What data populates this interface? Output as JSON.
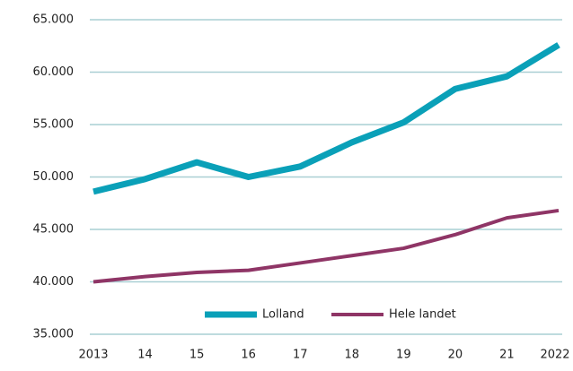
{
  "chart_data": {
    "type": "line",
    "categories": [
      "2013",
      "14",
      "15",
      "16",
      "17",
      "18",
      "19",
      "20",
      "21",
      "2022"
    ],
    "series": [
      {
        "name": "Lolland",
        "color": "#0aa0b8",
        "values": [
          48600,
          49800,
          51400,
          50000,
          51000,
          53300,
          55200,
          58400,
          59600,
          62600
        ]
      },
      {
        "name": "Hele landet",
        "color": "#8f3566",
        "values": [
          40000,
          40500,
          40900,
          41100,
          41800,
          42500,
          43200,
          44500,
          46100,
          46800
        ]
      }
    ],
    "ylim": [
      35000,
      65000
    ],
    "yticks": [
      {
        "value": 35000,
        "label": "35.000"
      },
      {
        "value": 40000,
        "label": "40.000"
      },
      {
        "value": 45000,
        "label": "45.000"
      },
      {
        "value": 50000,
        "label": "50.000"
      },
      {
        "value": 55000,
        "label": "55.000"
      },
      {
        "value": 60000,
        "label": "60.000"
      },
      {
        "value": 65000,
        "label": "65.000"
      }
    ],
    "grid": true,
    "legend": "bottom"
  }
}
